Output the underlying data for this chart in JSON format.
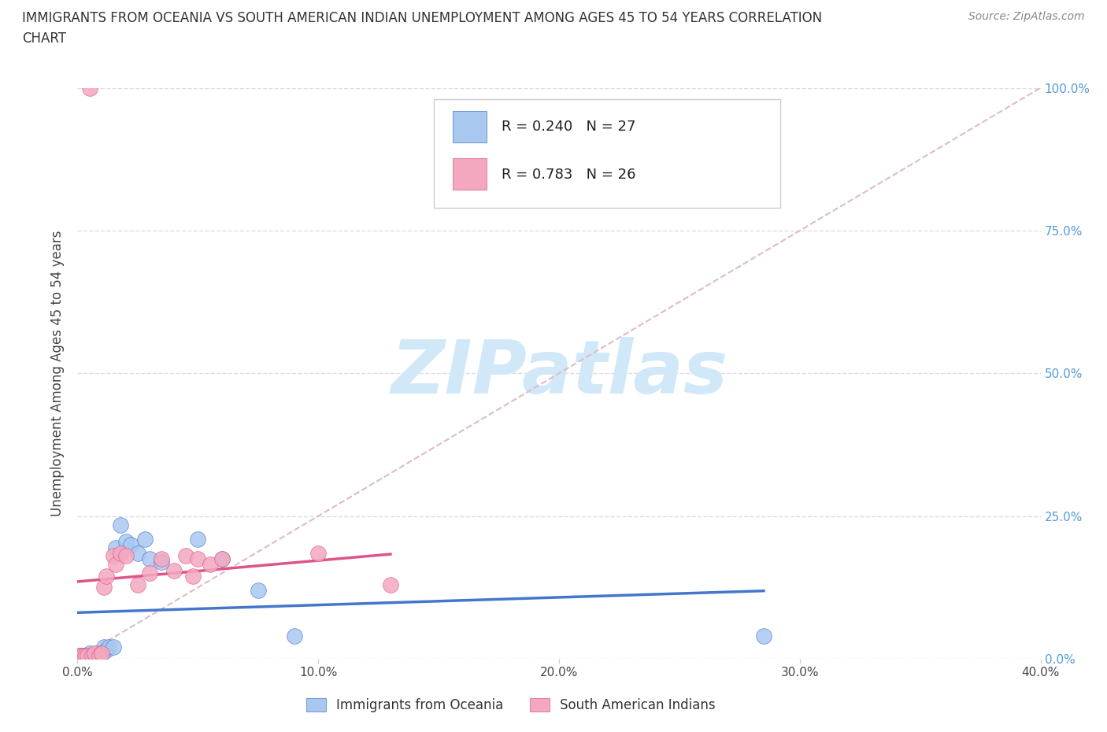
{
  "title_line1": "IMMIGRANTS FROM OCEANIA VS SOUTH AMERICAN INDIAN UNEMPLOYMENT AMONG AGES 45 TO 54 YEARS CORRELATION",
  "title_line2": "CHART",
  "source": "Source: ZipAtlas.com",
  "ylabel": "Unemployment Among Ages 45 to 54 years",
  "xlim": [
    0.0,
    0.4
  ],
  "ylim": [
    0.0,
    1.0
  ],
  "x_ticks": [
    0.0,
    0.1,
    0.2,
    0.3,
    0.4
  ],
  "x_tick_labels": [
    "0.0%",
    "10.0%",
    "20.0%",
    "30.0%",
    "40.0%"
  ],
  "y_ticks": [
    0.0,
    0.25,
    0.5,
    0.75,
    1.0
  ],
  "y_tick_labels": [
    "0.0%",
    "25.0%",
    "50.0%",
    "75.0%",
    "100.0%"
  ],
  "legend_labels": [
    "Immigrants from Oceania",
    "South American Indians"
  ],
  "R_oceania": "0.240",
  "N_oceania": "27",
  "R_sa": "0.783",
  "N_sa": "26",
  "oceania_color": "#a8c8f0",
  "sa_indian_color": "#f4a8c0",
  "oceania_line_color": "#4477cc",
  "sa_indian_line_color": "#dd5588",
  "diag_line_color": "#ddbbcc",
  "watermark_color": "#d0e8f8",
  "background_color": "#ffffff",
  "oceania_points_x": [
    0.001,
    0.002,
    0.003,
    0.004,
    0.005,
    0.006,
    0.007,
    0.008,
    0.009,
    0.01,
    0.011,
    0.012,
    0.013,
    0.015,
    0.016,
    0.018,
    0.02,
    0.022,
    0.025,
    0.028,
    0.03,
    0.035,
    0.05,
    0.06,
    0.075,
    0.09,
    0.285
  ],
  "oceania_points_y": [
    0.005,
    0.005,
    0.005,
    0.005,
    0.01,
    0.005,
    0.005,
    0.01,
    0.005,
    0.01,
    0.02,
    0.015,
    0.02,
    0.02,
    0.195,
    0.235,
    0.205,
    0.2,
    0.185,
    0.21,
    0.175,
    0.17,
    0.21,
    0.175,
    0.12,
    0.04,
    0.04
  ],
  "sa_indian_points_x": [
    0.001,
    0.002,
    0.003,
    0.004,
    0.005,
    0.006,
    0.007,
    0.009,
    0.01,
    0.011,
    0.012,
    0.015,
    0.016,
    0.018,
    0.02,
    0.025,
    0.03,
    0.035,
    0.04,
    0.045,
    0.05,
    0.055,
    0.06,
    0.1,
    0.13,
    0.048
  ],
  "sa_indian_points_y": [
    0.005,
    0.005,
    0.005,
    0.005,
    1.0,
    0.005,
    0.01,
    0.005,
    0.01,
    0.125,
    0.145,
    0.18,
    0.165,
    0.185,
    0.18,
    0.13,
    0.15,
    0.175,
    0.155,
    0.18,
    0.175,
    0.165,
    0.175,
    0.185,
    0.13,
    0.145
  ]
}
